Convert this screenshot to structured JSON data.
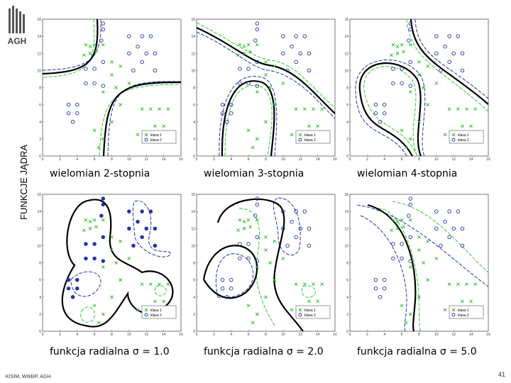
{
  "logo": "AGH",
  "side_title": "FUNKCJE JĄDRA",
  "footer": "KISIM, WIMiIP, AGH",
  "page_number": "41",
  "xlim": [
    0,
    16
  ],
  "ylim": [
    0,
    16
  ],
  "xticks": [
    0,
    2,
    4,
    6,
    8,
    10,
    12,
    14,
    16
  ],
  "yticks": [
    0,
    2,
    4,
    6,
    8,
    10,
    12,
    14,
    16
  ],
  "legend": [
    "klasa 1",
    "klasa 2"
  ],
  "class1": {
    "x": [
      5,
      6,
      5.5,
      6.2,
      4.8,
      5.5,
      7,
      8,
      8,
      8.5,
      7,
      9,
      8,
      6,
      7,
      6.5,
      11.5,
      12.5,
      13.5,
      14.5,
      13,
      14,
      11,
      10,
      9
    ],
    "y": [
      13,
      13,
      12,
      12.2,
      11.8,
      12.8,
      13,
      11,
      9.5,
      8,
      7.5,
      6,
      4,
      3,
      2,
      1,
      5.5,
      5.5,
      5.5,
      5.5,
      3.5,
      3.5,
      2.5,
      8.5,
      10.5
    ]
  },
  "class2": {
    "x": [
      7,
      7,
      6.8,
      10,
      11.5,
      12.5,
      10,
      11,
      12,
      13,
      11.5,
      10.5,
      13,
      5,
      6,
      7,
      5,
      6,
      7,
      3,
      3,
      4,
      4,
      3.5
    ],
    "y": [
      15.5,
      14.8,
      13.5,
      14,
      14,
      14,
      12,
      12.8,
      12,
      12,
      11,
      10,
      10,
      10.2,
      10.2,
      11,
      8.5,
      8.5,
      8.2,
      6,
      5,
      6,
      5,
      4
    ]
  },
  "panels": [
    {
      "caption": "wielomian 2-stopnia"
    },
    {
      "caption": "wielomian 3-stopnia"
    },
    {
      "caption": "wielomian 4-stopnia"
    },
    {
      "caption": "funkcja radialna σ = 1.0"
    },
    {
      "caption": "funkcja radialna σ = 2.0"
    },
    {
      "caption": "funkcja radialna σ = 5.0"
    }
  ]
}
